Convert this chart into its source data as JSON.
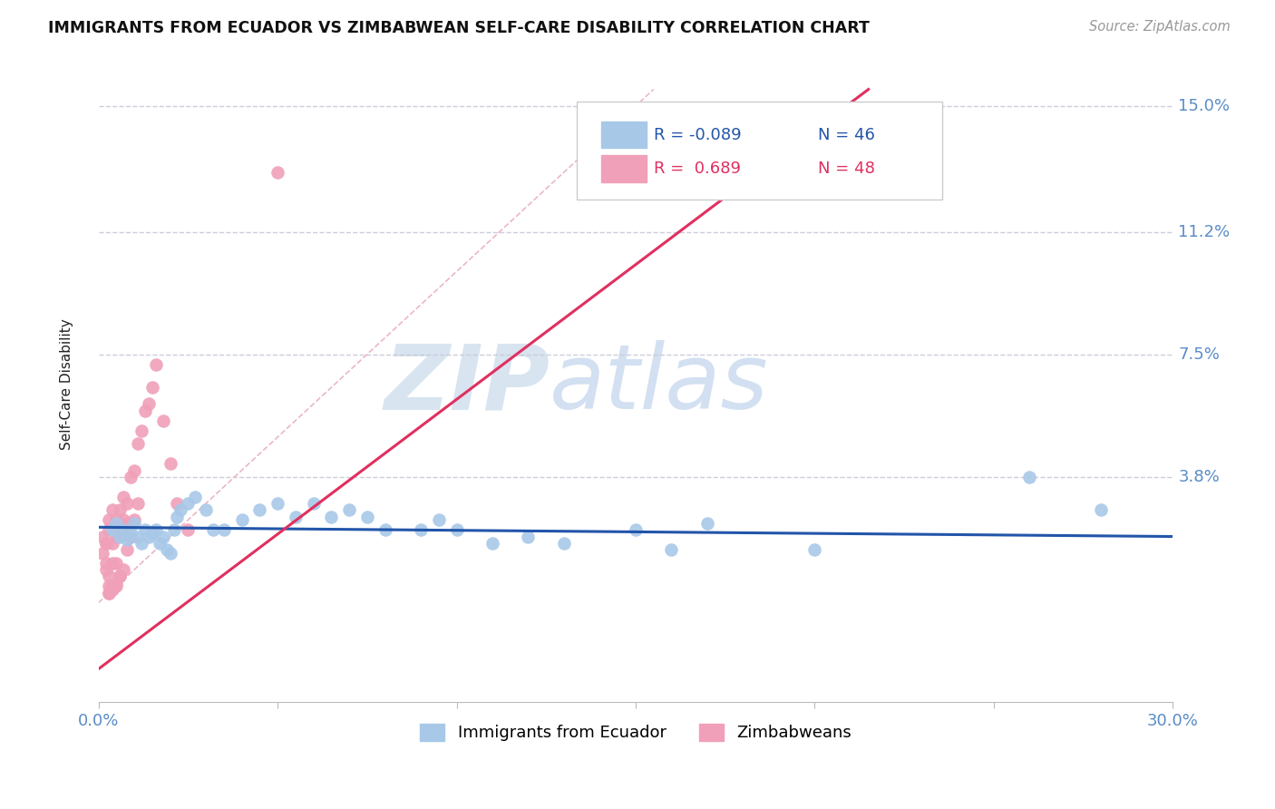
{
  "title": "IMMIGRANTS FROM ECUADOR VS ZIMBABWEAN SELF-CARE DISABILITY CORRELATION CHART",
  "source": "Source: ZipAtlas.com",
  "ylabel": "Self-Care Disability",
  "xlim": [
    0.0,
    0.3
  ],
  "ylim": [
    -0.03,
    0.162
  ],
  "ytick_positions": [
    0.038,
    0.075,
    0.112,
    0.15
  ],
  "ytick_labels": [
    "3.8%",
    "7.5%",
    "11.2%",
    "15.0%"
  ],
  "blue_color": "#A8C8E8",
  "pink_color": "#F0A0B8",
  "blue_line_color": "#2255AA",
  "pink_line_color": "#E03060",
  "diag_line_color": "#E8B0C0",
  "watermark_zip": "ZIP",
  "watermark_atlas": "atlas",
  "background_color": "#FFFFFF",
  "grid_color": "#C8C8D8",
  "blue_scatter_x": [
    0.004,
    0.005,
    0.006,
    0.007,
    0.008,
    0.009,
    0.01,
    0.011,
    0.012,
    0.013,
    0.014,
    0.015,
    0.016,
    0.017,
    0.018,
    0.019,
    0.02,
    0.021,
    0.022,
    0.023,
    0.025,
    0.027,
    0.03,
    0.032,
    0.035,
    0.04,
    0.045,
    0.05,
    0.055,
    0.06,
    0.065,
    0.07,
    0.075,
    0.08,
    0.09,
    0.095,
    0.1,
    0.11,
    0.12,
    0.13,
    0.15,
    0.16,
    0.17,
    0.2,
    0.26,
    0.28
  ],
  "blue_scatter_y": [
    0.022,
    0.024,
    0.02,
    0.022,
    0.019,
    0.021,
    0.024,
    0.02,
    0.018,
    0.022,
    0.02,
    0.021,
    0.022,
    0.018,
    0.02,
    0.016,
    0.015,
    0.022,
    0.026,
    0.028,
    0.03,
    0.032,
    0.028,
    0.022,
    0.022,
    0.025,
    0.028,
    0.03,
    0.026,
    0.03,
    0.026,
    0.028,
    0.026,
    0.022,
    0.022,
    0.025,
    0.022,
    0.018,
    0.02,
    0.018,
    0.022,
    0.016,
    0.024,
    0.016,
    0.038,
    0.028
  ],
  "pink_scatter_x": [
    0.001,
    0.001,
    0.002,
    0.002,
    0.002,
    0.003,
    0.003,
    0.003,
    0.003,
    0.004,
    0.004,
    0.004,
    0.004,
    0.005,
    0.005,
    0.005,
    0.005,
    0.006,
    0.006,
    0.006,
    0.007,
    0.007,
    0.007,
    0.008,
    0.008,
    0.008,
    0.009,
    0.009,
    0.01,
    0.01,
    0.011,
    0.011,
    0.012,
    0.013,
    0.014,
    0.015,
    0.016,
    0.018,
    0.02,
    0.022,
    0.025,
    0.005,
    0.006,
    0.003,
    0.004,
    0.002,
    0.003,
    0.05
  ],
  "pink_scatter_y": [
    0.015,
    0.02,
    0.018,
    0.01,
    0.012,
    0.022,
    0.025,
    0.008,
    0.005,
    0.028,
    0.018,
    0.012,
    0.005,
    0.025,
    0.02,
    0.012,
    0.006,
    0.028,
    0.022,
    0.008,
    0.032,
    0.025,
    0.01,
    0.03,
    0.024,
    0.016,
    0.038,
    0.02,
    0.04,
    0.025,
    0.048,
    0.03,
    0.052,
    0.058,
    0.06,
    0.065,
    0.072,
    0.055,
    0.042,
    0.03,
    0.022,
    0.005,
    0.008,
    0.003,
    0.004,
    0.018,
    0.003,
    0.13
  ],
  "pink_line_x0": 0.0,
  "pink_line_y0": -0.02,
  "pink_line_x1": 0.215,
  "pink_line_y1": 0.155,
  "blue_line_x0": 0.0,
  "blue_line_y0": 0.0228,
  "blue_line_x1": 0.3,
  "blue_line_y1": 0.02
}
